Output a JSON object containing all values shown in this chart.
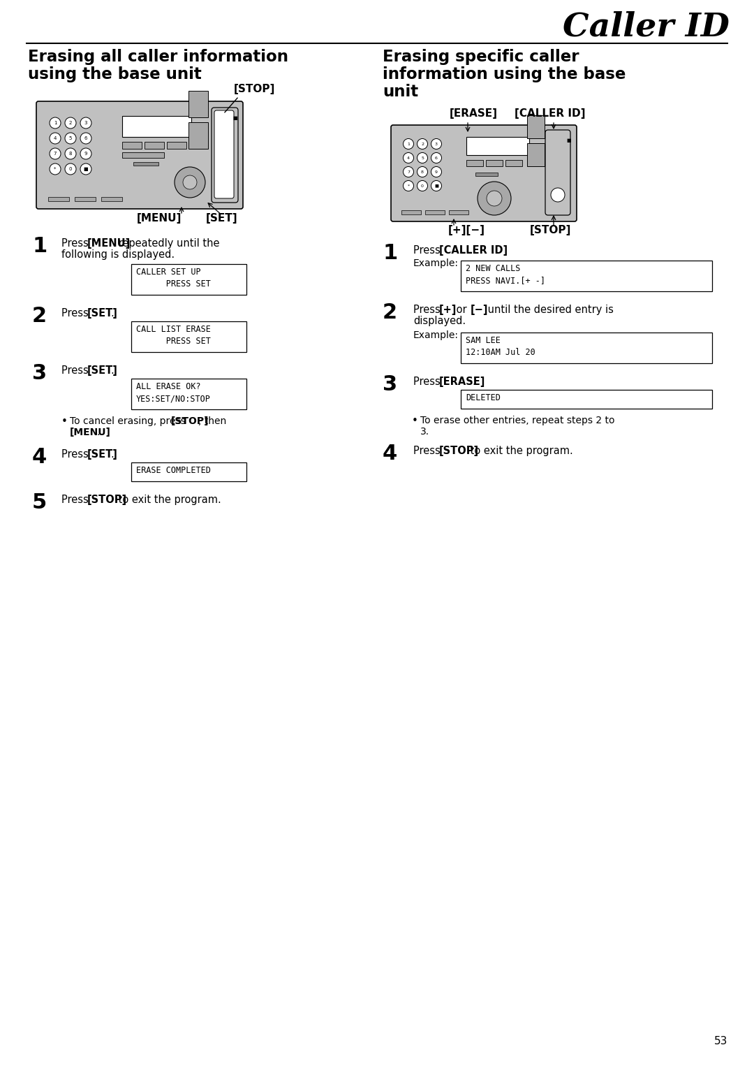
{
  "page_number": "53",
  "header_title": "Caller ID",
  "bg_color": "#ffffff",
  "text_color": "#000000",
  "device_fill": "#c8c8c8",
  "device_stroke": "#000000",
  "left_heading": "Erasing all caller information\nusing the base unit",
  "right_heading": "Erasing specific caller\ninformation using the base\nunit",
  "left_steps": [
    {
      "num": "1",
      "normal1": "Press ",
      "bold1": "[MENU]",
      "normal2": " repeatedly until the\nfollowing is displayed.",
      "display": [
        "CALLER SET UP",
        "      PRESS SET"
      ]
    },
    {
      "num": "2",
      "normal1": "Press ",
      "bold1": "[SET]",
      "normal2": ".",
      "display": [
        "CALL LIST ERASE",
        "      PRESS SET"
      ]
    },
    {
      "num": "3",
      "normal1": "Press ",
      "bold1": "[SET]",
      "normal2": ".",
      "display": [
        "ALL ERASE OK?",
        "YES:SET/NO:STOP"
      ],
      "bullet_normal1": "To cancel erasing, press ",
      "bullet_bold1": "[STOP]",
      "bullet_normal2": ", then",
      "bullet_bold2": "[MENU]",
      "bullet_normal3": "."
    },
    {
      "num": "4",
      "normal1": "Press ",
      "bold1": "[SET]",
      "normal2": ".",
      "display": [
        "ERASE COMPLETED"
      ]
    },
    {
      "num": "5",
      "normal1": "Press ",
      "bold1": "[STOP]",
      "normal2": " to exit the program."
    }
  ],
  "right_steps": [
    {
      "num": "1",
      "normal1": "Press ",
      "bold1": "[CALLER ID]",
      "normal2": ".",
      "example": true,
      "display": [
        "2 NEW CALLS",
        "PRESS NAVI.[+ -]"
      ]
    },
    {
      "num": "2",
      "normal1": "Press ",
      "bold1": "[+]",
      "normal2": " or ",
      "bold2": "[−]",
      "normal3": " until the desired entry is\ndisplayed.",
      "example": true,
      "display": [
        "SAM LEE",
        "12:10AM Jul 20"
      ]
    },
    {
      "num": "3",
      "normal1": "Press ",
      "bold1": "[ERASE]",
      "normal2": ".",
      "display": [
        "DELETED"
      ],
      "bullet_normal1": "To erase other entries, repeat steps 2 to\n3."
    },
    {
      "num": "4",
      "normal1": "Press ",
      "bold1": "[STOP]",
      "normal2": " to exit the program."
    }
  ]
}
